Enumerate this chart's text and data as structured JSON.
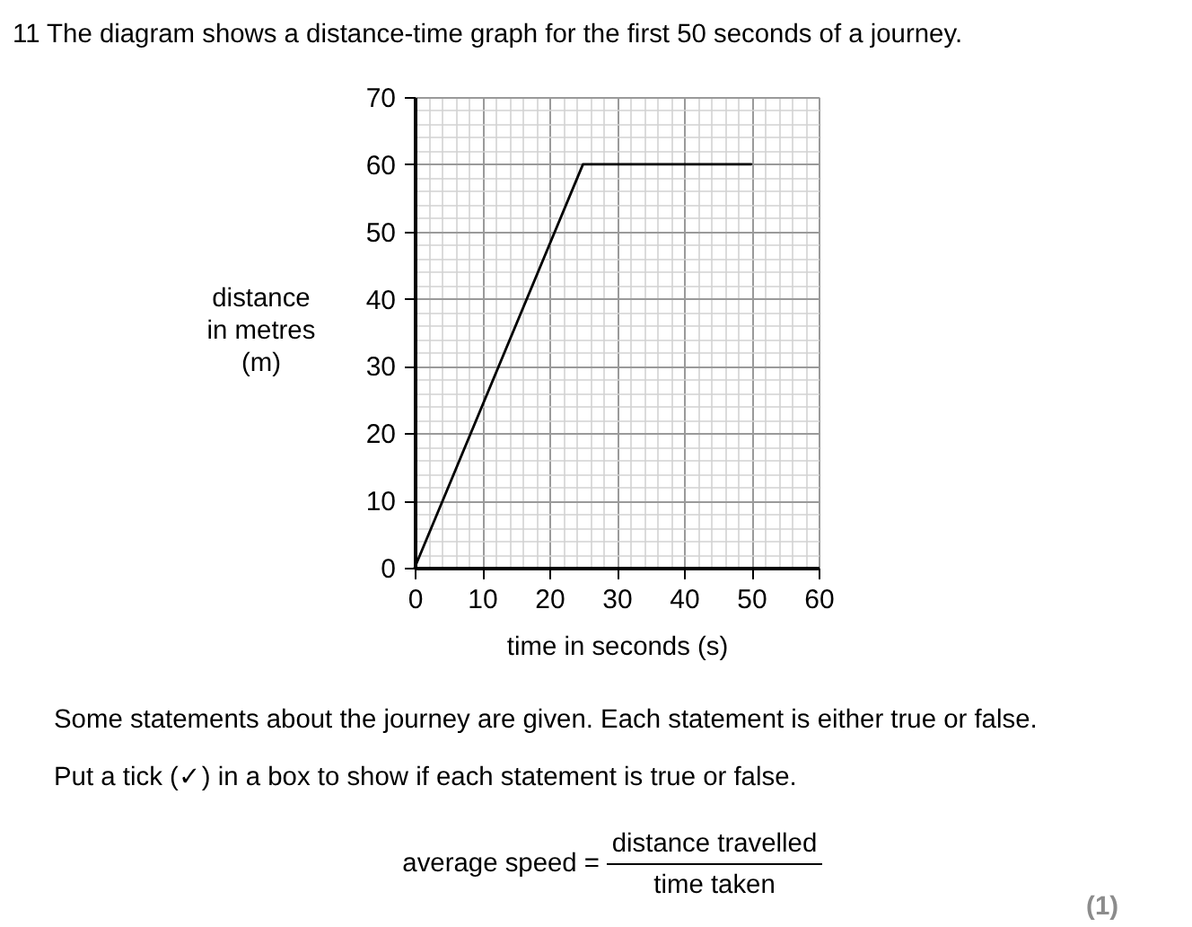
{
  "chart_data": {
    "type": "line",
    "title": "11 The diagram shows a distance-time graph for the first 50 seconds of a journey.",
    "xlabel": "time in seconds (s)",
    "ylabel": "distance\nin metres\n(m)",
    "x": [
      0,
      25,
      50
    ],
    "values": [
      0,
      60,
      60
    ],
    "color": "#000000",
    "line_style": "solid",
    "xlim": [
      0,
      60
    ],
    "ylim": [
      0,
      70
    ],
    "xticks": [
      0,
      10,
      20,
      30,
      40,
      50,
      60
    ],
    "yticks": [
      0,
      10,
      20,
      30,
      40,
      50,
      60,
      70
    ],
    "grid": true,
    "annotations": [
      "Some statements about the journey are given.  Each statement is either true or false.",
      "Put a tick (✓) in a box to show if each statement is true or false.",
      "average speed =",
      "distance travelled",
      "time taken",
      "(1)"
    ]
  }
}
